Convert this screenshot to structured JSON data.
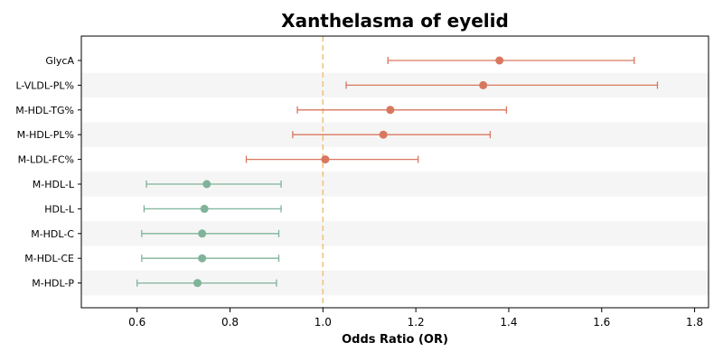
{
  "chart_data": {
    "type": "forest",
    "title": "Xanthelasma of eyelid",
    "xlabel": "Odds Ratio (OR)",
    "ylabel": "",
    "xlim": [
      0.48,
      1.83
    ],
    "xticks": [
      0.6,
      0.8,
      1.0,
      1.2,
      1.4,
      1.6,
      1.8
    ],
    "xtick_labels": [
      "0.6",
      "0.8",
      "1.0",
      "1.2",
      "1.4",
      "1.6",
      "1.8"
    ],
    "reference_line": 1.0,
    "reference_color": "#f5c27a",
    "colors": {
      "above": "#d9775e",
      "below": "#7fb39a",
      "band": "#f5f5f5"
    },
    "grid": false,
    "categories": [
      "GlycA",
      "L-VLDL-PL%",
      "M-HDL-TG%",
      "M-HDL-PL%",
      "M-LDL-FC%",
      "M-HDL-L",
      "HDL-L",
      "M-HDL-C",
      "M-HDL-CE",
      "M-HDL-P"
    ],
    "or": [
      1.38,
      1.345,
      1.145,
      1.13,
      1.005,
      0.75,
      0.745,
      0.74,
      0.74,
      0.73
    ],
    "ci_low": [
      1.14,
      1.05,
      0.945,
      0.935,
      0.835,
      0.62,
      0.615,
      0.61,
      0.61,
      0.6
    ],
    "ci_high": [
      1.67,
      1.72,
      1.395,
      1.36,
      1.205,
      0.91,
      0.91,
      0.905,
      0.905,
      0.9
    ]
  }
}
